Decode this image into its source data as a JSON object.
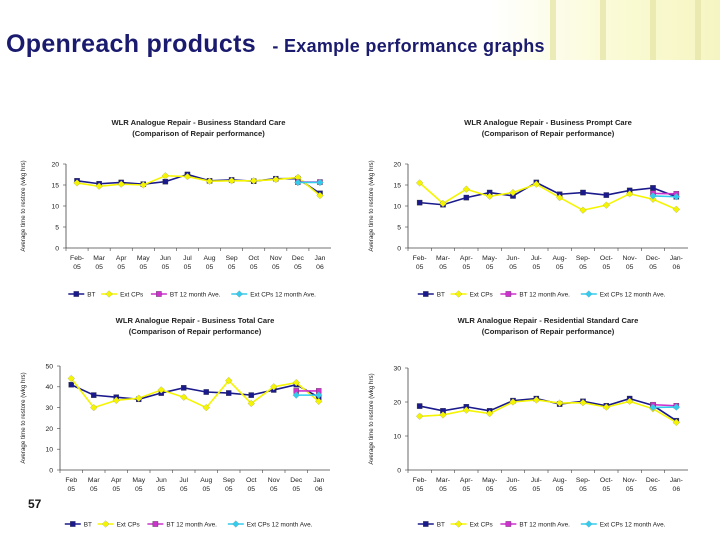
{
  "header": {
    "title": "Openreach products",
    "subtitle": "- Example performance graphs"
  },
  "footer": {
    "page_number": "57"
  },
  "chart_data": [
    {
      "type": "line",
      "title": "WLR Analogue Repair - Business Standard Care",
      "subtitle": "(Comparison of Repair performance)",
      "ylabel": "Average time to restore (wkg hrs)",
      "xlabel": "",
      "categories": [
        "Feb-\n05",
        "Mar\n05",
        "Apr\n05",
        "May\n05",
        "Jun\n05",
        "Jul\n05",
        "Aug\n05",
        "Sep\n05",
        "Oct\n05",
        "Nov\n05",
        "Dec\n05",
        "Jan\n06"
      ],
      "ylim": [
        0,
        20
      ],
      "yticks": [
        0,
        5,
        10,
        15,
        20
      ],
      "series": [
        {
          "name": "BT",
          "color": "#1a1a8c",
          "marker": "square",
          "values": [
            16,
            15.3,
            15.6,
            15.2,
            15.8,
            17.5,
            16.0,
            16.2,
            15.9,
            16.5,
            16.5,
            13.0
          ]
        },
        {
          "name": "Ext CPs",
          "color": "#f5f500",
          "marker": "diamond",
          "values": [
            15.5,
            14.7,
            15.2,
            15.0,
            17.2,
            17.0,
            15.9,
            16.0,
            16.0,
            16.3,
            16.8,
            12.5
          ]
        },
        {
          "name": "BT 12 month Ave.",
          "color": "#cc33cc",
          "marker": "square",
          "values": [
            null,
            null,
            null,
            null,
            null,
            null,
            null,
            null,
            null,
            null,
            15.7,
            15.7
          ]
        },
        {
          "name": "Ext CPs 12 month Ave.",
          "color": "#33ccee",
          "marker": "diamond",
          "values": [
            null,
            null,
            null,
            null,
            null,
            null,
            null,
            null,
            null,
            null,
            15.6,
            15.6
          ]
        }
      ]
    },
    {
      "type": "line",
      "title": "WLR Analogue Repair - Business Prompt Care",
      "subtitle": "(Comparison of Repair performance)",
      "ylabel": "Average time to restore (wkg hrs)",
      "xlabel": "",
      "categories": [
        "Feb-\n05",
        "Mar-\n05",
        "Apr-\n05",
        "May-\n05",
        "Jun-\n05",
        "Jul-\n05",
        "Aug-\n05",
        "Sep-\n05",
        "Oct-\n05",
        "Nov-\n05",
        "Dec-\n05",
        "Jan-\n06"
      ],
      "ylim": [
        0,
        20
      ],
      "yticks": [
        0,
        5,
        10,
        15,
        20
      ],
      "series": [
        {
          "name": "BT",
          "color": "#1a1a8c",
          "marker": "square",
          "values": [
            10.8,
            10.3,
            12.0,
            13.2,
            12.4,
            15.6,
            12.8,
            13.2,
            12.6,
            13.7,
            14.3,
            12.2
          ]
        },
        {
          "name": "Ext CPs",
          "color": "#f5f500",
          "marker": "diamond",
          "values": [
            15.5,
            10.6,
            14.0,
            12.3,
            13.2,
            15.2,
            12.0,
            9.0,
            10.2,
            12.9,
            11.6,
            9.2
          ]
        },
        {
          "name": "BT 12 month Ave.",
          "color": "#cc33cc",
          "marker": "square",
          "values": [
            null,
            null,
            null,
            null,
            null,
            null,
            null,
            null,
            null,
            null,
            13.0,
            12.9
          ]
        },
        {
          "name": "Ext CPs 12 month Ave.",
          "color": "#33ccee",
          "marker": "diamond",
          "values": [
            null,
            null,
            null,
            null,
            null,
            null,
            null,
            null,
            null,
            null,
            12.4,
            12.2
          ]
        }
      ]
    },
    {
      "type": "line",
      "title": "WLR Analogue Repair - Business Total Care",
      "subtitle": "(Comparison of Repair performance)",
      "ylabel": "Average time to restore (wkg hrs)",
      "xlabel": "",
      "categories": [
        "Feb\n05",
        "Mar\n05",
        "Apr\n05",
        "May\n05",
        "Jun\n05",
        "Jul\n05",
        "Aug\n05",
        "Sep\n05",
        "Oct\n05",
        "Nov\n05",
        "Dec\n05",
        "Jan\n06"
      ],
      "ylim": [
        0,
        50
      ],
      "yticks": [
        0,
        10,
        20,
        30,
        40,
        50
      ],
      "series": [
        {
          "name": "BT",
          "color": "#1a1a8c",
          "marker": "square",
          "values": [
            41,
            36,
            35,
            34,
            37,
            39.5,
            37.5,
            37,
            36,
            38.5,
            41,
            35
          ]
        },
        {
          "name": "Ext CPs",
          "color": "#f5f500",
          "marker": "diamond",
          "values": [
            44,
            30,
            33.5,
            34.5,
            38.5,
            35,
            30,
            43,
            32,
            40,
            42,
            33
          ]
        },
        {
          "name": "BT 12 month Ave.",
          "color": "#cc33cc",
          "marker": "square",
          "values": [
            null,
            null,
            null,
            null,
            null,
            null,
            null,
            null,
            null,
            null,
            38,
            38
          ]
        },
        {
          "name": "Ext CPs 12 month Ave.",
          "color": "#33ccee",
          "marker": "diamond",
          "values": [
            null,
            null,
            null,
            null,
            null,
            null,
            null,
            null,
            null,
            null,
            36,
            36
          ]
        }
      ]
    },
    {
      "type": "line",
      "title": "WLR Analogue Repair - Residential Standard Care",
      "subtitle": "(Comparison of Repair performance)",
      "ylabel": "Average time to restore (wkg hrs)",
      "xlabel": "",
      "categories": [
        "Feb-\n05",
        "Mar-\n05",
        "Apr-\n05",
        "May-\n05",
        "Jun-\n05",
        "Jul-\n05",
        "Aug-\n05",
        "Sep-\n05",
        "Oct-\n05",
        "Nov-\n05",
        "Dec-\n05",
        "Jan-\n06"
      ],
      "ylim": [
        0,
        30
      ],
      "yticks": [
        0,
        10,
        20,
        30
      ],
      "series": [
        {
          "name": "BT",
          "color": "#1a1a8c",
          "marker": "square",
          "values": [
            18.8,
            17.4,
            18.6,
            17.4,
            20.4,
            21.0,
            19.4,
            20.2,
            18.9,
            21.0,
            19.0,
            14.5
          ]
        },
        {
          "name": "Ext CPs",
          "color": "#f5f500",
          "marker": "diamond",
          "values": [
            15.8,
            16.2,
            17.6,
            16.6,
            20.0,
            20.6,
            19.7,
            19.8,
            18.5,
            20.2,
            18.0,
            14.0
          ]
        },
        {
          "name": "BT 12 month Ave.",
          "color": "#cc33cc",
          "marker": "square",
          "values": [
            null,
            null,
            null,
            null,
            null,
            null,
            null,
            null,
            null,
            null,
            19.2,
            18.9
          ]
        },
        {
          "name": "Ext CPs 12 month Ave.",
          "color": "#33ccee",
          "marker": "diamond",
          "values": [
            null,
            null,
            null,
            null,
            null,
            null,
            null,
            null,
            null,
            null,
            18.4,
            18.5
          ]
        }
      ]
    }
  ]
}
